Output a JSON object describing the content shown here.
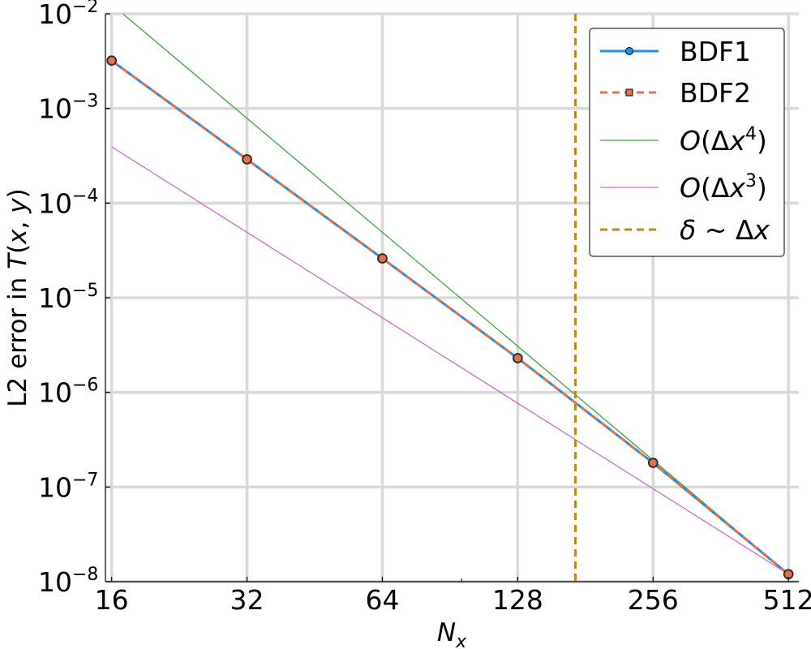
{
  "chart_data": {
    "type": "line",
    "title": "",
    "xlabel": "N_x",
    "ylabel": "L2 error in T(x, y)",
    "xscale": "log2",
    "yscale": "log10",
    "xlim": [
      15.5,
      540
    ],
    "ylim": [
      1e-08,
      0.01
    ],
    "xticks": [
      16,
      32,
      64,
      128,
      256,
      512
    ],
    "xtick_labels": [
      "16",
      "32",
      "64",
      "128",
      "256",
      "512"
    ],
    "yticks": [
      1e-08,
      1e-07,
      1e-06,
      1e-05,
      0.0001,
      0.001,
      0.01
    ],
    "ytick_base": "10",
    "ytick_exponents": [
      "−8",
      "−7",
      "−6",
      "−5",
      "−4",
      "−3",
      "−2"
    ],
    "grid": true,
    "legend_position": "top-right",
    "series": [
      {
        "name": "BDF1",
        "color": "#1f8fe8",
        "style": "solid",
        "marker": "circle",
        "x": [
          16,
          32,
          64,
          128,
          256,
          512
        ],
        "y": [
          0.0032,
          0.00029,
          2.6e-05,
          2.3e-06,
          1.8e-07,
          1.2e-08
        ]
      },
      {
        "name": "BDF2",
        "color": "#e0734e",
        "style": "dashed",
        "marker": "square",
        "x": [
          16,
          32,
          64,
          128,
          256,
          512
        ],
        "y": [
          0.0032,
          0.00029,
          2.6e-05,
          2.3e-06,
          1.8e-07,
          1.2e-08
        ]
      },
      {
        "name": "O(Δx⁴)",
        "legend_base": "O(Δx",
        "legend_sup": "4",
        "legend_close": ")",
        "color": "#3aa63a",
        "style": "solid",
        "marker": "none",
        "x": [
          16,
          512
        ],
        "y": [
          0.01258,
          1.2e-08
        ]
      },
      {
        "name": "O(Δx³)",
        "legend_base": "O(Δx",
        "legend_sup": "3",
        "legend_close": ")",
        "color": "#c86bd3",
        "style": "solid",
        "marker": "none",
        "x": [
          16,
          512
        ],
        "y": [
          0.000393,
          1.2e-08
        ]
      },
      {
        "name": "δ ~ Δx",
        "color": "#b88a1a",
        "style": "dashed",
        "marker": "none",
        "vline_x": 172
      }
    ]
  }
}
